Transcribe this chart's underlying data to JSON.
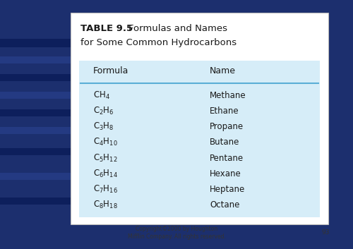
{
  "bg_color": "#1c2f6e",
  "table_bg": "#ffffff",
  "content_bg": "#d6edf8",
  "header_bg": "#cce5f5",
  "table_title_bold": "TABLE 9.5",
  "title_line1_rest": "  Formulas and Names",
  "title_line2": "for Some Common Hydrocarbons",
  "col_header_formula": "Formula",
  "col_header_name": "Name",
  "formulas": [
    "CH$_4$",
    "C$_2$H$_6$",
    "C$_3$H$_8$",
    "C$_4$H$_{10}$",
    "C$_5$H$_{12}$",
    "C$_6$H$_{14}$",
    "C$_7$H$_{16}$",
    "C$_8$H$_{18}$"
  ],
  "names": [
    "Methane",
    "Ethane",
    "Propane",
    "Butane",
    "Pentane",
    "Hexane",
    "Heptane",
    "Octane"
  ],
  "footer": "Copyright©2000 by Houghton\nMifflin Company. All rights reserved.",
  "page_num": "93",
  "line_color": "#5bafd6",
  "text_color": "#1a1a1a",
  "footer_color": "#333333",
  "stripe_color": "#2a4a9a",
  "stripe_dark": "#0a1a4a"
}
